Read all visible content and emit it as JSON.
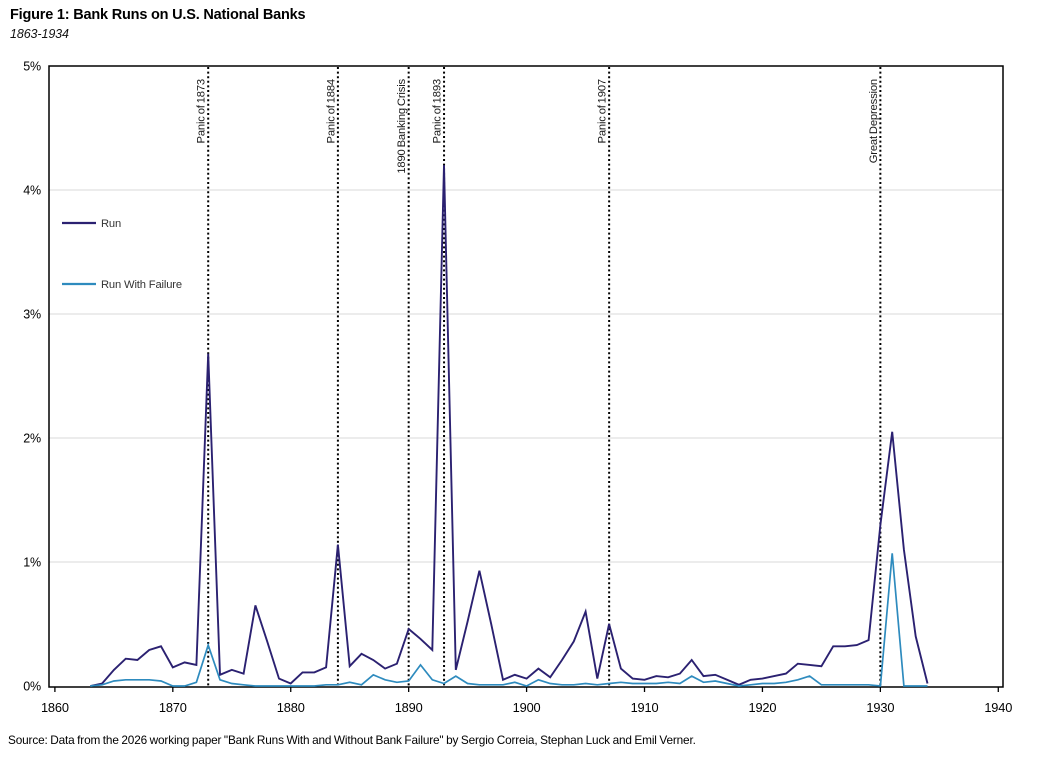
{
  "header": {
    "title": "Figure 1: Bank Runs on U.S. National Banks",
    "subtitle": "1863-1934"
  },
  "source_note": "Source: Data from the 2026 working paper \"Bank Runs With and Without Bank Failure\" by Sergio Correia, Stephan Luck and Emil Verner.",
  "chart_data": {
    "type": "line",
    "title": "Figure 1: Bank Runs on U.S. National Banks",
    "subtitle": "1863-1934",
    "xlabel": "",
    "ylabel": "",
    "xlim": [
      1859.5,
      1940.4
    ],
    "ylim": [
      0,
      5
    ],
    "grid": "horizontal",
    "legend_position": "upper-left",
    "grid_color": "#d9d9d9",
    "axis_color": "#000000",
    "event_line_color": "#000000",
    "label_color": "#1a1a1a",
    "xticks": [
      1860,
      1870,
      1880,
      1890,
      1900,
      1910,
      1920,
      1930,
      1940
    ],
    "yticks": {
      "values": [
        0,
        1,
        2,
        3,
        4,
        5
      ],
      "labels": [
        "0%",
        "1%",
        "2%",
        "3%",
        "4%",
        "5%"
      ]
    },
    "x": [
      1863,
      1864,
      1865,
      1866,
      1867,
      1868,
      1869,
      1870,
      1871,
      1872,
      1873,
      1874,
      1875,
      1876,
      1877,
      1878,
      1879,
      1880,
      1881,
      1882,
      1883,
      1884,
      1885,
      1886,
      1887,
      1888,
      1889,
      1890,
      1891,
      1892,
      1893,
      1894,
      1895,
      1896,
      1897,
      1898,
      1899,
      1900,
      1901,
      1902,
      1903,
      1904,
      1905,
      1906,
      1907,
      1908,
      1909,
      1910,
      1911,
      1912,
      1913,
      1914,
      1915,
      1916,
      1917,
      1918,
      1919,
      1920,
      1921,
      1922,
      1923,
      1924,
      1925,
      1926,
      1927,
      1928,
      1929,
      1930,
      1931,
      1932,
      1933,
      1934
    ],
    "series": [
      {
        "name": "Run",
        "color": "#2b2171",
        "width": 1.9,
        "values": [
          0.0,
          0.02,
          0.13,
          0.22,
          0.21,
          0.29,
          0.32,
          0.15,
          0.19,
          0.17,
          2.68,
          0.09,
          0.13,
          0.1,
          0.65,
          0.36,
          0.06,
          0.02,
          0.11,
          0.11,
          0.15,
          1.14,
          0.16,
          0.26,
          0.21,
          0.14,
          0.18,
          0.46,
          0.38,
          0.29,
          4.2,
          0.13,
          0.52,
          0.93,
          0.5,
          0.05,
          0.09,
          0.06,
          0.14,
          0.07,
          0.21,
          0.36,
          0.6,
          0.06,
          0.5,
          0.14,
          0.06,
          0.05,
          0.08,
          0.07,
          0.1,
          0.21,
          0.08,
          0.09,
          0.05,
          0.01,
          0.05,
          0.06,
          0.08,
          0.1,
          0.18,
          0.17,
          0.16,
          0.32,
          0.32,
          0.33,
          0.37,
          1.3,
          2.05,
          1.1,
          0.4,
          0.02
        ]
      },
      {
        "name": "Run With Failure",
        "color": "#2e8bbe",
        "width": 1.7,
        "values": [
          0.0,
          0.01,
          0.04,
          0.05,
          0.05,
          0.05,
          0.04,
          0.0,
          0.0,
          0.03,
          0.33,
          0.05,
          0.02,
          0.01,
          0.0,
          0.0,
          0.0,
          0.0,
          0.0,
          0.0,
          0.01,
          0.01,
          0.03,
          0.01,
          0.09,
          0.05,
          0.03,
          0.04,
          0.17,
          0.05,
          0.02,
          0.08,
          0.02,
          0.01,
          0.01,
          0.01,
          0.03,
          0.0,
          0.05,
          0.02,
          0.01,
          0.01,
          0.02,
          0.01,
          0.02,
          0.03,
          0.02,
          0.02,
          0.02,
          0.03,
          0.02,
          0.08,
          0.03,
          0.04,
          0.02,
          0.0,
          0.01,
          0.02,
          0.02,
          0.03,
          0.05,
          0.08,
          0.01,
          0.01,
          0.01,
          0.01,
          0.01,
          0.0,
          1.07,
          0.0,
          0.0,
          0.0
        ]
      }
    ],
    "events": [
      {
        "year": 1873,
        "label": "Panic of 1873"
      },
      {
        "year": 1884,
        "label": "Panic of 1884"
      },
      {
        "year": 1890,
        "label": "1890 Banking Crisis"
      },
      {
        "year": 1893,
        "label": "Panic of 1893"
      },
      {
        "year": 1907,
        "label": "Panic of 1907"
      },
      {
        "year": 1930,
        "label": "Great Depression"
      }
    ]
  }
}
